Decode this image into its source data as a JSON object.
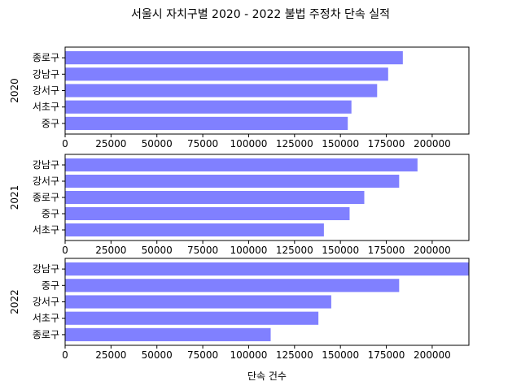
{
  "figure": {
    "title": "서울시 자치구별 2020 - 2022 불법 주정차 단속 실적",
    "xlabel": "단속 건수",
    "bar_color": "#8080ff"
  },
  "chart_data": [
    {
      "type": "bar",
      "orientation": "horizontal",
      "ylabel": "2020",
      "xlim": [
        0,
        220000
      ],
      "xticks": [
        0,
        25000,
        50000,
        75000,
        100000,
        125000,
        150000,
        175000,
        200000
      ],
      "categories": [
        "종로구",
        "강남구",
        "강서구",
        "서초구",
        "중구"
      ],
      "values": [
        184000,
        176000,
        170000,
        156000,
        154000
      ]
    },
    {
      "type": "bar",
      "orientation": "horizontal",
      "ylabel": "2021",
      "xlim": [
        0,
        220000
      ],
      "xticks": [
        0,
        25000,
        50000,
        75000,
        100000,
        125000,
        150000,
        175000,
        200000
      ],
      "categories": [
        "강남구",
        "강서구",
        "종로구",
        "중구",
        "서초구"
      ],
      "values": [
        192000,
        182000,
        163000,
        155000,
        141000
      ]
    },
    {
      "type": "bar",
      "orientation": "horizontal",
      "ylabel": "2022",
      "xlim": [
        0,
        220000
      ],
      "xticks": [
        0,
        25000,
        50000,
        75000,
        100000,
        125000,
        150000,
        175000,
        200000
      ],
      "categories": [
        "강남구",
        "중구",
        "강서구",
        "서초구",
        "종로구"
      ],
      "values": [
        220000,
        182000,
        145000,
        138000,
        112000
      ]
    }
  ]
}
